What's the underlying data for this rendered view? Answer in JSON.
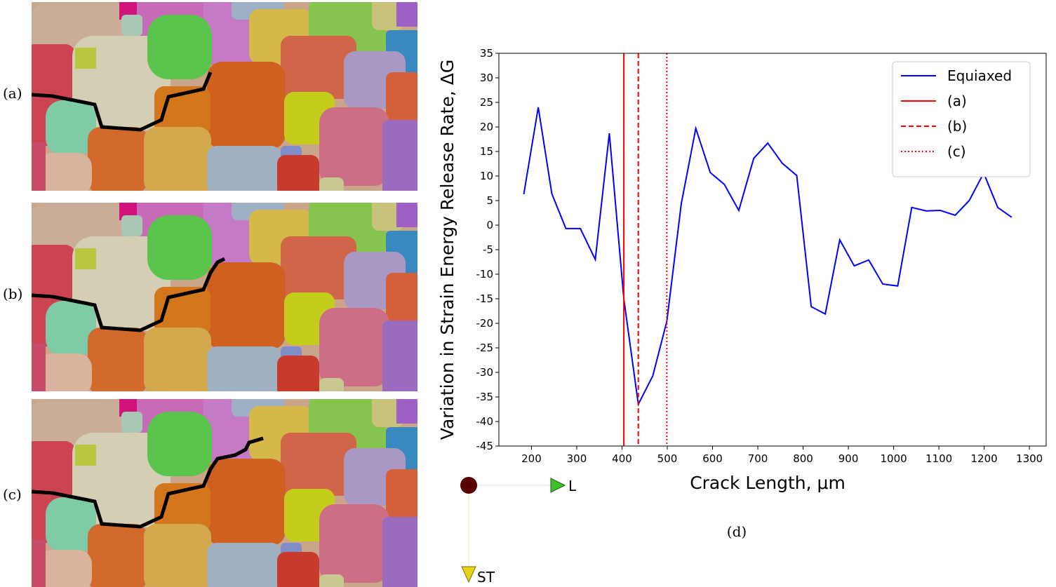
{
  "chart_data": {
    "type": "line",
    "x_label": "Crack Length, μm",
    "y_label": "Variation in Strain Energy Release Rate, ΔG",
    "xlim": [
      128,
      1337
    ],
    "ylim": [
      -45,
      35
    ],
    "xticks": [
      200,
      300,
      400,
      500,
      600,
      700,
      800,
      900,
      1000,
      1100,
      1200,
      1300
    ],
    "yticks": [
      -45,
      -40,
      -35,
      -30,
      -25,
      -20,
      -15,
      -10,
      -5,
      0,
      5,
      10,
      15,
      20,
      25,
      30,
      35
    ],
    "series": [
      {
        "name": "Equiaxed",
        "color": "#0000ff",
        "x": [
          183,
          215,
          245,
          276,
          308,
          341,
          372,
          404,
          436,
          468,
          499,
          531,
          563,
          595,
          626,
          658,
          691,
          722,
          754,
          786,
          818,
          849,
          881,
          913,
          945,
          976,
          1009,
          1040,
          1072,
          1103,
          1136,
          1167,
          1199,
          1230,
          1261
        ],
        "values": [
          6.3,
          24,
          6.4,
          -0.7,
          -0.7,
          -7,
          18.7,
          -15,
          -36.5,
          -30.7,
          -19.6,
          4.4,
          19.7,
          10.7,
          8.3,
          3,
          13.6,
          16.7,
          12.6,
          10.1,
          -16.6,
          -18.1,
          -3,
          -8.3,
          -7.1,
          -12,
          -12.4,
          3.6,
          2.9,
          3,
          2,
          5,
          10.6,
          3.6,
          1.6
        ]
      }
    ],
    "vlines": [
      {
        "name": "(a)",
        "color": "#ff0000",
        "x": 404,
        "dash": "solid"
      },
      {
        "name": "(b)",
        "color": "#ff0000",
        "x": 436,
        "dash": "dashed"
      },
      {
        "name": "(c)",
        "color": "#ff0000",
        "x": 499,
        "dash": "dotted"
      }
    ],
    "legend": "upper right",
    "caption": "(d)"
  },
  "figure": {
    "panel_labels": [
      "(a)",
      "(b)",
      "(c)"
    ],
    "triad_labels": [
      "L",
      "ST"
    ]
  }
}
